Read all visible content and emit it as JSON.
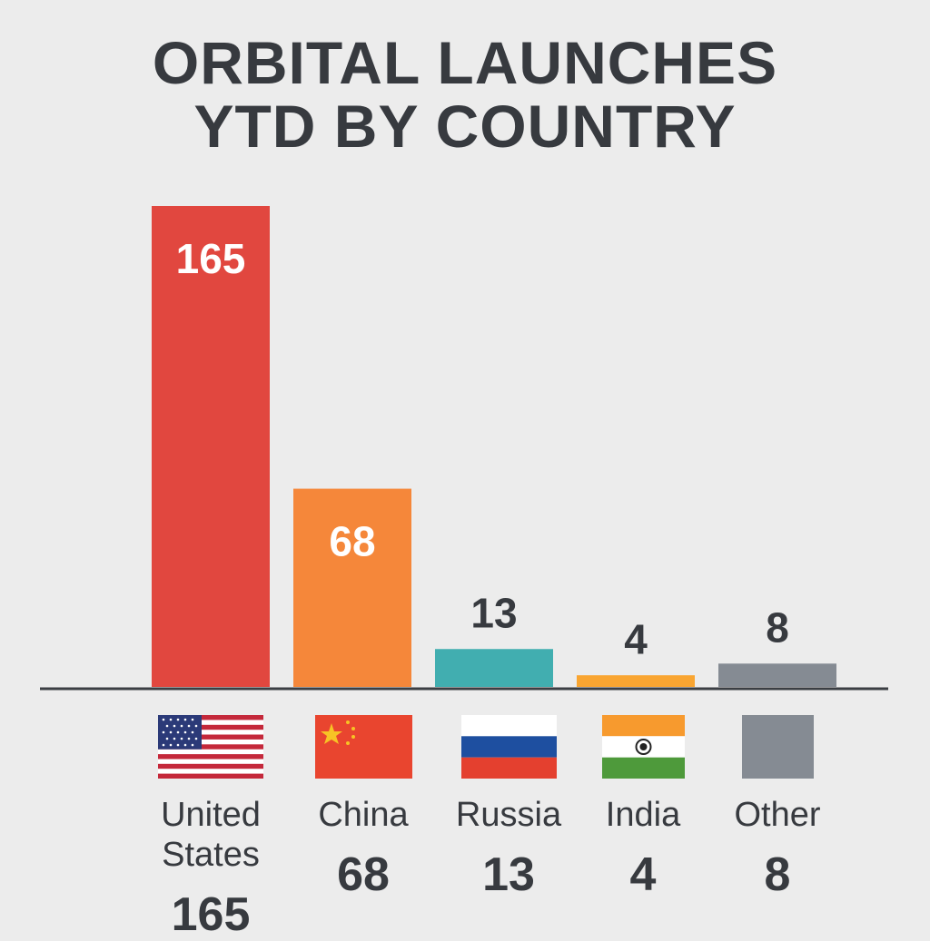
{
  "chart_data": {
    "type": "bar",
    "title": "ORBITAL LAUNCHES YTD BY COUNTRY",
    "categories": [
      "United States",
      "China",
      "Russia",
      "India",
      "Other"
    ],
    "values": [
      165,
      68,
      13,
      4,
      8
    ],
    "colors": [
      "#e1473f",
      "#f5873a",
      "#41aeb0",
      "#f9a531",
      "#858b93"
    ]
  }
}
